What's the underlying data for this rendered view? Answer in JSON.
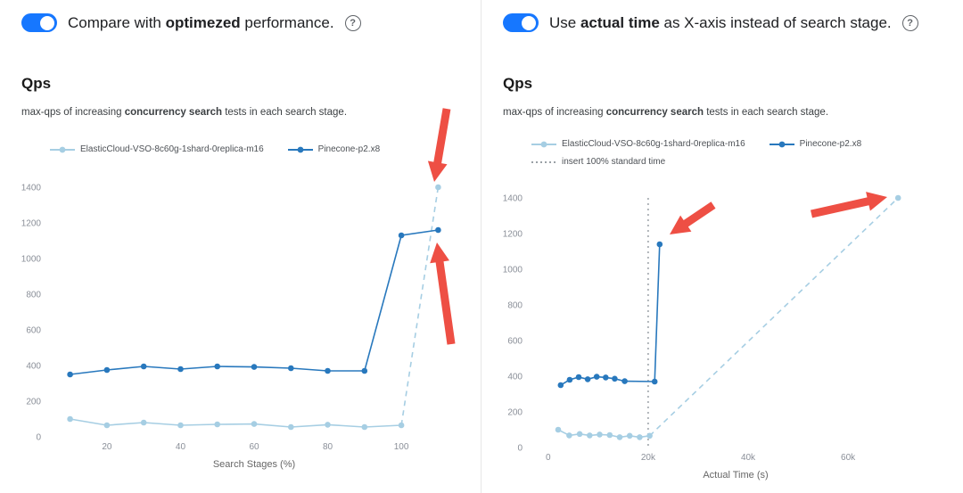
{
  "colors": {
    "toggle_on": "#1677ff",
    "arrow": "#ee4f44",
    "axis_text": "#8a8f98",
    "xlabel_text": "#666666",
    "text": "#202124",
    "subtitle": "#3c4043",
    "divider": "#e7e7e7",
    "ref_line": "#9aa0a6"
  },
  "panels": [
    {
      "toggle_state": "on",
      "header": {
        "prefix": "Compare with ",
        "bold": "optimezed",
        "suffix": " performance."
      },
      "help_icon": "?",
      "subtitle": {
        "prefix": "max-qps of increasing ",
        "bold": "concurrency search",
        "suffix": " tests in each search stage."
      }
    },
    {
      "toggle_state": "on",
      "header": {
        "prefix": "Use ",
        "bold": "actual time",
        "suffix": " as X-axis instead of search stage."
      },
      "help_icon": "?",
      "subtitle": {
        "prefix": "max-qps of increasing ",
        "bold": "concurrency search",
        "suffix": " tests in each search stage."
      }
    }
  ],
  "chart_data": [
    {
      "type": "line",
      "title": "Qps",
      "xlabel": "Search Stages (%)",
      "ylabel": "",
      "xlim": [
        5,
        115
      ],
      "ylim": [
        0,
        1400
      ],
      "xticks": [
        {
          "v": 20,
          "t": "20"
        },
        {
          "v": 40,
          "t": "40"
        },
        {
          "v": 60,
          "t": "60"
        },
        {
          "v": 80,
          "t": "80"
        },
        {
          "v": 100,
          "t": "100"
        }
      ],
      "yticks": [
        0,
        200,
        400,
        600,
        800,
        1000,
        1200,
        1400
      ],
      "grid": false,
      "legend_position": "top",
      "series": [
        {
          "name": "ElasticCloud-VSO-8c60g-1shard-0replica-m16",
          "color": "#a6cee3",
          "x": [
            10,
            20,
            30,
            40,
            50,
            60,
            70,
            80,
            90,
            100,
            110
          ],
          "y": [
            100,
            65,
            80,
            65,
            70,
            72,
            55,
            68,
            55,
            65,
            1400
          ],
          "dashed_from": 9
        },
        {
          "name": "Pinecone-p2.x8",
          "color": "#2878bd",
          "x": [
            10,
            20,
            30,
            40,
            50,
            60,
            70,
            80,
            90,
            100,
            110
          ],
          "y": [
            350,
            375,
            395,
            380,
            395,
            392,
            385,
            370,
            370,
            1130,
            1160
          ],
          "dashed_from": null
        }
      ],
      "arrows": [
        {
          "tail": [
            501,
            122
          ],
          "tip": [
            487,
            204
          ]
        },
        {
          "tail": [
            506,
            386
          ],
          "tip": [
            490,
            272
          ]
        }
      ]
    },
    {
      "type": "line",
      "title": "Qps",
      "xlabel": "Actual Time (s)",
      "ylabel": "",
      "xlim": [
        -3000,
        78000
      ],
      "ylim": [
        0,
        1400
      ],
      "xticks": [
        {
          "v": 0,
          "t": "0"
        },
        {
          "v": 20000,
          "t": "20k"
        },
        {
          "v": 40000,
          "t": "40k"
        },
        {
          "v": 60000,
          "t": "60k"
        }
      ],
      "yticks": [
        0,
        200,
        400,
        600,
        800,
        1000,
        1200,
        1400
      ],
      "grid": false,
      "legend_position": "top",
      "ref_lines": [
        {
          "x": 20000,
          "label": "insert 100% standard time",
          "color": "#9aa0a6",
          "style": "dotted"
        }
      ],
      "series": [
        {
          "name": "ElasticCloud-VSO-8c60g-1shard-0replica-m16",
          "color": "#a6cee3",
          "x": [
            2000,
            4200,
            6300,
            8300,
            10300,
            12300,
            14300,
            16300,
            18300,
            20300,
            70000
          ],
          "y": [
            100,
            68,
            76,
            68,
            73,
            70,
            58,
            66,
            58,
            66,
            1400
          ],
          "dashed_from": 9
        },
        {
          "name": "Pinecone-p2.x8",
          "color": "#2878bd",
          "x": [
            2500,
            4300,
            6100,
            7900,
            9700,
            11500,
            13300,
            15300,
            21300,
            22300
          ],
          "y": [
            350,
            380,
            395,
            383,
            397,
            393,
            386,
            372,
            370,
            1140
          ],
          "dashed_from": null
        }
      ],
      "arrows": [
        {
          "tail": [
            260,
            230
          ],
          "tip": [
            211,
            263
          ]
        },
        {
          "tail": [
            370,
            240
          ],
          "tip": [
            455,
            221
          ]
        }
      ]
    }
  ]
}
